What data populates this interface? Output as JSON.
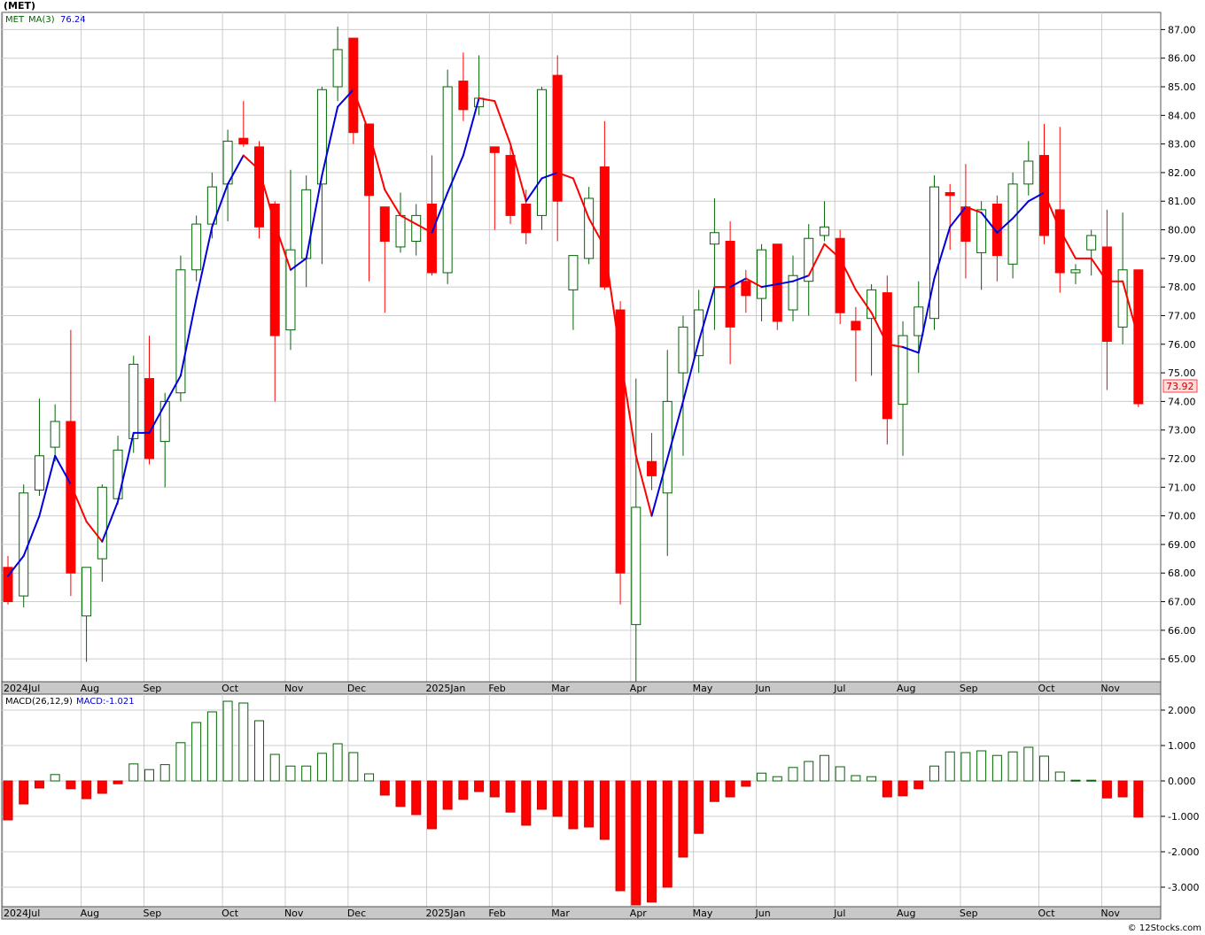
{
  "header": {
    "symbol": "(MET)",
    "legend_symbol": "MET",
    "ma_label": "MA(3)",
    "ma_value": "76.24",
    "macd_label": "MACD(26,12,9)",
    "macd_value_label": "MACD:-1.021",
    "last_price": "73.92",
    "copyright": "© 12Stocks.com"
  },
  "colors": {
    "up": "#006400",
    "down": "#ff0000",
    "ma_up": "#0000dd",
    "ma_down": "#ff0000",
    "grid": "#cccccc",
    "axis_band": "#c8c8c8"
  },
  "chart_data": [
    {
      "type": "candlestick",
      "title": "(MET)",
      "interval": "weekly",
      "ylim": [
        64.2,
        87.6
      ],
      "y_ticks": [
        "87.00",
        "86.00",
        "85.00",
        "84.00",
        "83.00",
        "82.00",
        "81.00",
        "80.00",
        "79.00",
        "78.00",
        "77.00",
        "76.00",
        "75.00",
        "74.00",
        "73.00",
        "72.00",
        "71.00",
        "70.00",
        "69.00",
        "68.00",
        "67.00",
        "66.00",
        "65.00"
      ],
      "x_labels": [
        {
          "label": "2024Jul",
          "i": 0
        },
        {
          "label": "Aug",
          "i": 5
        },
        {
          "label": "Sep",
          "i": 9
        },
        {
          "label": "Oct",
          "i": 14
        },
        {
          "label": "Nov",
          "i": 18
        },
        {
          "label": "Dec",
          "i": 22
        },
        {
          "label": "2025Jan",
          "i": 27
        },
        {
          "label": "Feb",
          "i": 31
        },
        {
          "label": "Mar",
          "i": 35
        },
        {
          "label": "Apr",
          "i": 40
        },
        {
          "label": "May",
          "i": 44
        },
        {
          "label": "Jun",
          "i": 48
        },
        {
          "label": "Jul",
          "i": 53
        },
        {
          "label": "Aug",
          "i": 57
        },
        {
          "label": "Sep",
          "i": 61
        },
        {
          "label": "Oct",
          "i": 66
        },
        {
          "label": "Nov",
          "i": 70
        }
      ],
      "candles": [
        {
          "o": 68.2,
          "h": 68.6,
          "l": 66.9,
          "c": 67.0
        },
        {
          "o": 67.2,
          "h": 71.1,
          "l": 66.8,
          "c": 70.8
        },
        {
          "o": 70.9,
          "h": 74.1,
          "l": 70.7,
          "c": 72.1
        },
        {
          "o": 72.4,
          "h": 73.9,
          "l": 71.9,
          "c": 73.3
        },
        {
          "o": 73.3,
          "h": 76.5,
          "l": 67.2,
          "c": 68.0
        },
        {
          "o": 66.5,
          "h": 68.2,
          "l": 64.9,
          "c": 68.2
        },
        {
          "o": 68.5,
          "h": 71.1,
          "l": 67.7,
          "c": 71.0
        },
        {
          "o": 70.6,
          "h": 72.8,
          "l": 70.4,
          "c": 72.3
        },
        {
          "o": 72.7,
          "h": 75.6,
          "l": 72.2,
          "c": 75.3
        },
        {
          "o": 74.8,
          "h": 76.3,
          "l": 71.8,
          "c": 72.0
        },
        {
          "o": 72.6,
          "h": 74.3,
          "l": 71.0,
          "c": 74.0
        },
        {
          "o": 74.3,
          "h": 79.1,
          "l": 74.0,
          "c": 78.6
        },
        {
          "o": 78.6,
          "h": 80.5,
          "l": 78.2,
          "c": 80.2
        },
        {
          "o": 80.2,
          "h": 82.0,
          "l": 79.7,
          "c": 81.5
        },
        {
          "o": 81.6,
          "h": 83.5,
          "l": 80.3,
          "c": 83.1
        },
        {
          "o": 83.2,
          "h": 84.5,
          "l": 82.9,
          "c": 83.0
        },
        {
          "o": 82.9,
          "h": 83.1,
          "l": 79.7,
          "c": 80.1
        },
        {
          "o": 80.9,
          "h": 81.0,
          "l": 74.0,
          "c": 76.3
        },
        {
          "o": 76.5,
          "h": 82.1,
          "l": 75.8,
          "c": 79.3
        },
        {
          "o": 79.0,
          "h": 81.9,
          "l": 78.0,
          "c": 81.4
        },
        {
          "o": 81.6,
          "h": 85.0,
          "l": 78.8,
          "c": 84.9
        },
        {
          "o": 85.0,
          "h": 87.1,
          "l": 84.5,
          "c": 86.3
        },
        {
          "o": 86.7,
          "h": 86.7,
          "l": 83.0,
          "c": 83.4
        },
        {
          "o": 83.7,
          "h": 83.7,
          "l": 78.2,
          "c": 81.2
        },
        {
          "o": 80.8,
          "h": 80.8,
          "l": 77.1,
          "c": 79.6
        },
        {
          "o": 79.4,
          "h": 81.3,
          "l": 79.2,
          "c": 80.5
        },
        {
          "o": 79.6,
          "h": 80.9,
          "l": 79.1,
          "c": 80.5
        },
        {
          "o": 80.9,
          "h": 82.6,
          "l": 78.4,
          "c": 78.5
        },
        {
          "o": 78.5,
          "h": 85.6,
          "l": 78.1,
          "c": 85.0
        },
        {
          "o": 85.2,
          "h": 86.2,
          "l": 83.8,
          "c": 84.2
        },
        {
          "o": 84.3,
          "h": 86.1,
          "l": 84.0,
          "c": 84.6
        },
        {
          "o": 82.9,
          "h": 82.9,
          "l": 80.0,
          "c": 82.7
        },
        {
          "o": 82.6,
          "h": 83.0,
          "l": 80.2,
          "c": 80.5
        },
        {
          "o": 80.9,
          "h": 81.4,
          "l": 79.5,
          "c": 79.9
        },
        {
          "o": 80.5,
          "h": 85.0,
          "l": 80.0,
          "c": 84.9
        },
        {
          "o": 85.4,
          "h": 86.1,
          "l": 79.6,
          "c": 81.0
        },
        {
          "o": 77.9,
          "h": 79.1,
          "l": 76.5,
          "c": 79.1
        },
        {
          "o": 79.0,
          "h": 81.5,
          "l": 78.8,
          "c": 81.1
        },
        {
          "o": 82.2,
          "h": 83.8,
          "l": 77.9,
          "c": 78.0
        },
        {
          "o": 77.2,
          "h": 77.5,
          "l": 66.9,
          "c": 68.0
        },
        {
          "o": 66.2,
          "h": 74.8,
          "l": 64.2,
          "c": 70.3
        },
        {
          "o": 71.9,
          "h": 72.9,
          "l": 70.9,
          "c": 71.4
        },
        {
          "o": 70.8,
          "h": 75.8,
          "l": 68.6,
          "c": 74.0
        },
        {
          "o": 75.0,
          "h": 77.0,
          "l": 72.1,
          "c": 76.6
        },
        {
          "o": 75.6,
          "h": 77.9,
          "l": 75.0,
          "c": 77.2
        },
        {
          "o": 79.5,
          "h": 81.1,
          "l": 76.5,
          "c": 79.9
        },
        {
          "o": 79.6,
          "h": 80.3,
          "l": 75.3,
          "c": 76.6
        },
        {
          "o": 78.2,
          "h": 78.6,
          "l": 77.1,
          "c": 77.7
        },
        {
          "o": 77.6,
          "h": 79.5,
          "l": 76.8,
          "c": 79.3
        },
        {
          "o": 79.5,
          "h": 79.5,
          "l": 76.5,
          "c": 76.8
        },
        {
          "o": 77.2,
          "h": 79.1,
          "l": 76.8,
          "c": 78.4
        },
        {
          "o": 78.2,
          "h": 80.2,
          "l": 77.0,
          "c": 79.7
        },
        {
          "o": 79.8,
          "h": 81.0,
          "l": 79.6,
          "c": 80.1
        },
        {
          "o": 79.7,
          "h": 80.0,
          "l": 76.7,
          "c": 77.1
        },
        {
          "o": 76.8,
          "h": 77.3,
          "l": 74.7,
          "c": 76.5
        },
        {
          "o": 76.9,
          "h": 78.1,
          "l": 74.9,
          "c": 77.9
        },
        {
          "o": 77.8,
          "h": 78.4,
          "l": 72.5,
          "c": 73.4
        },
        {
          "o": 73.9,
          "h": 76.8,
          "l": 72.1,
          "c": 76.3
        },
        {
          "o": 76.3,
          "h": 78.2,
          "l": 75.0,
          "c": 77.3
        },
        {
          "o": 76.9,
          "h": 81.9,
          "l": 76.5,
          "c": 81.5
        },
        {
          "o": 81.3,
          "h": 81.6,
          "l": 79.3,
          "c": 81.2
        },
        {
          "o": 80.8,
          "h": 82.3,
          "l": 78.3,
          "c": 79.6
        },
        {
          "o": 79.2,
          "h": 81.0,
          "l": 77.9,
          "c": 80.7
        },
        {
          "o": 80.9,
          "h": 81.2,
          "l": 78.2,
          "c": 79.1
        },
        {
          "o": 78.8,
          "h": 82.0,
          "l": 78.3,
          "c": 81.6
        },
        {
          "o": 81.6,
          "h": 83.1,
          "l": 81.2,
          "c": 82.4
        },
        {
          "o": 82.6,
          "h": 83.7,
          "l": 79.5,
          "c": 79.8
        },
        {
          "o": 80.7,
          "h": 83.6,
          "l": 77.8,
          "c": 78.5
        },
        {
          "o": 78.5,
          "h": 78.8,
          "l": 78.1,
          "c": 78.6
        },
        {
          "o": 79.3,
          "h": 80.0,
          "l": 78.4,
          "c": 79.8
        },
        {
          "o": 79.4,
          "h": 80.7,
          "l": 74.4,
          "c": 76.1
        },
        {
          "o": 76.6,
          "h": 80.6,
          "l": 76.0,
          "c": 78.6
        },
        {
          "o": 78.6,
          "h": 78.6,
          "l": 73.8,
          "c": 73.92
        }
      ],
      "ma": [
        67.9,
        68.6,
        70.0,
        72.1,
        71.1,
        69.8,
        69.1,
        70.5,
        72.9,
        72.9,
        73.9,
        74.9,
        77.6,
        80.1,
        81.6,
        82.6,
        82.1,
        80.2,
        78.6,
        79.0,
        81.9,
        84.3,
        84.9,
        83.4,
        81.4,
        80.5,
        80.2,
        79.9,
        81.3,
        82.6,
        84.6,
        84.5,
        83.0,
        81.0,
        81.8,
        82.0,
        81.8,
        80.4,
        79.4,
        75.6,
        72.1,
        70.0,
        72.0,
        74.0,
        76.1,
        78.0,
        78.0,
        78.3,
        78.0,
        78.1,
        78.2,
        78.4,
        79.5,
        79.0,
        77.9,
        77.1,
        76.0,
        75.9,
        75.7,
        78.3,
        80.1,
        80.8,
        80.6,
        79.9,
        80.4,
        81.0,
        81.3,
        80.0,
        79.0,
        79.0,
        78.2,
        78.2,
        76.2
      ],
      "ma_colors": [
        "up",
        "up",
        "up",
        "up",
        "down",
        "down",
        "up",
        "up",
        "up",
        "up",
        "up",
        "up",
        "up",
        "up",
        "up",
        "down",
        "down",
        "down",
        "up",
        "up",
        "up",
        "up",
        "down",
        "down",
        "down",
        "down",
        "down",
        "up",
        "up",
        "up",
        "down",
        "down",
        "down",
        "up",
        "up",
        "down",
        "down",
        "down",
        "down",
        "down",
        "down",
        "up",
        "up",
        "up",
        "up",
        "down",
        "up",
        "down",
        "up",
        "up",
        "up",
        "down",
        "down",
        "down",
        "down",
        "down",
        "down",
        "up",
        "up",
        "up",
        "up",
        "down",
        "up",
        "up",
        "up",
        "up",
        "down",
        "down",
        "down",
        "down",
        "down",
        "down"
      ]
    },
    {
      "type": "bar",
      "title": "MACD(26,12,9)",
      "ylim": [
        -3.55,
        2.45
      ],
      "y_ticks": [
        "2.000",
        "1.000",
        "0.000",
        "-1.000",
        "-2.000",
        "-3.000"
      ],
      "values": [
        -1.1,
        -0.65,
        -0.2,
        0.18,
        -0.22,
        -0.5,
        -0.35,
        -0.08,
        0.48,
        0.32,
        0.46,
        1.08,
        1.65,
        1.95,
        2.25,
        2.2,
        1.7,
        0.75,
        0.42,
        0.42,
        0.78,
        1.05,
        0.8,
        0.2,
        -0.4,
        -0.72,
        -0.95,
        -1.35,
        -0.8,
        -0.52,
        -0.3,
        -0.45,
        -0.88,
        -1.25,
        -0.8,
        -1.0,
        -1.35,
        -1.3,
        -1.65,
        -3.1,
        -3.5,
        -3.42,
        -3.0,
        -2.15,
        -1.48,
        -0.58,
        -0.45,
        -0.15,
        0.22,
        0.12,
        0.38,
        0.55,
        0.72,
        0.4,
        0.15,
        0.12,
        -0.45,
        -0.42,
        -0.22,
        0.42,
        0.82,
        0.8,
        0.85,
        0.72,
        0.82,
        0.95,
        0.7,
        0.25,
        0.02,
        0.02,
        -0.48,
        -0.45,
        -1.02
      ]
    }
  ]
}
